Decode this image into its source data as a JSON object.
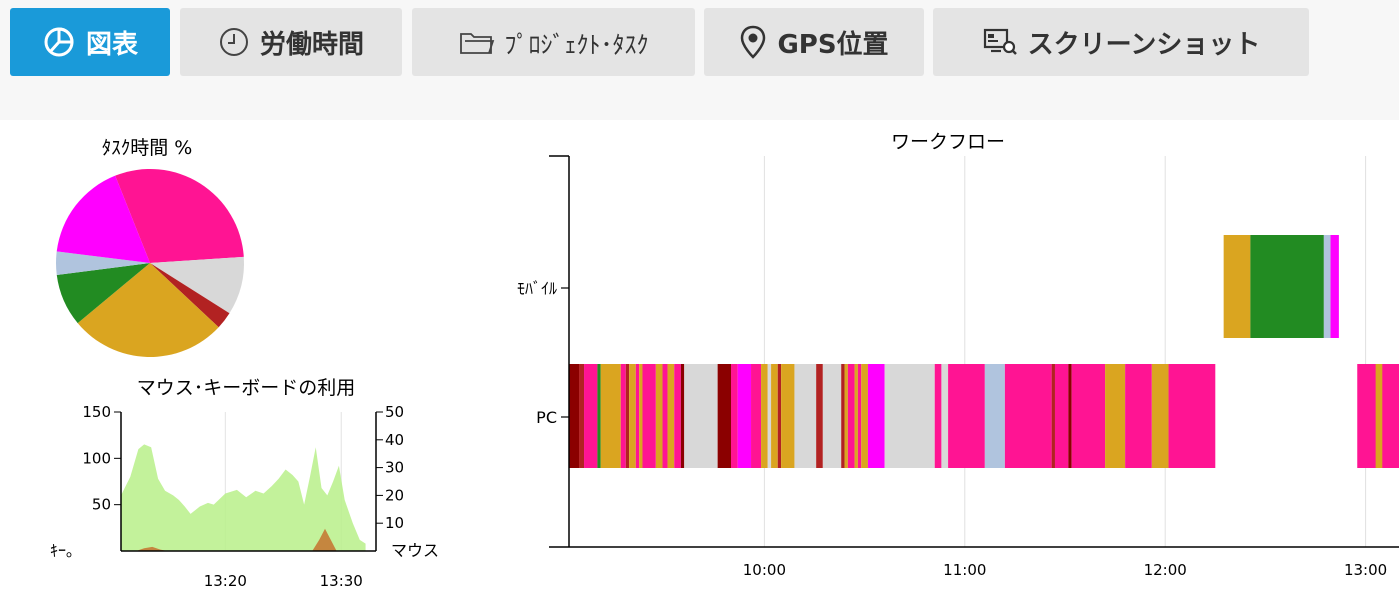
{
  "tabs": [
    {
      "label": "図表",
      "icon": "pie-chart-icon",
      "active": true
    },
    {
      "label": "労働時間",
      "icon": "clock-icon",
      "active": false
    },
    {
      "label": "ﾌﾟﾛｼﾞｪｸﾄ･ﾀｽｸ",
      "icon": "folder-icon",
      "active": false
    },
    {
      "label": "GPS位置",
      "icon": "location-pin-icon",
      "active": false
    },
    {
      "label": "スクリーンショット",
      "icon": "screenshot-icon",
      "active": false
    }
  ],
  "colors": {
    "accent": "#1a9ad9",
    "pink": "#ff1493",
    "magenta": "#ff00ff",
    "lightgray": "#d8d8d8",
    "firebrick": "#b22222",
    "goldenrod": "#daa520",
    "green": "#228b22",
    "lightsteelblue": "#b0c4de",
    "darkred": "#8b0000",
    "lightgreen": "#b9f08a",
    "brown": "#c57a35"
  },
  "chart_data": [
    {
      "type": "pie",
      "title": "ﾀｽｸ時間 %",
      "slices": [
        {
          "color": "pink",
          "value": 30
        },
        {
          "color": "lightgray",
          "value": 10
        },
        {
          "color": "firebrick",
          "value": 3
        },
        {
          "color": "goldenrod",
          "value": 27
        },
        {
          "color": "green",
          "value": 9
        },
        {
          "color": "lightsteelblue",
          "value": 4
        },
        {
          "color": "magenta",
          "value": 17
        }
      ]
    },
    {
      "type": "area",
      "title": "マウス･キーボードの利用",
      "x_ticks": [
        "13:20",
        "13:30"
      ],
      "x_tick_values": [
        20,
        30
      ],
      "xlim": [
        11,
        33
      ],
      "left_axis": {
        "label": "ｷｰ｡",
        "ylim": [
          0,
          150
        ],
        "ticks": [
          50,
          100,
          150
        ]
      },
      "right_axis": {
        "label": "マウス",
        "ylim": [
          0,
          50
        ],
        "ticks": [
          10,
          20,
          30,
          40,
          50
        ]
      },
      "series": [
        {
          "axis": "left",
          "color": "lightgreen",
          "x": [
            11,
            11.8,
            12.5,
            13,
            13.6,
            14.2,
            14.8,
            15.5,
            16,
            16.5,
            17,
            17.8,
            18.5,
            19,
            20,
            21,
            21.8,
            22.6,
            23.3,
            24,
            24.6,
            25.2,
            25.8,
            26.3,
            26.8,
            27.3,
            27.8,
            28.3,
            28.8,
            29.3,
            29.8,
            30.3,
            31,
            31.6,
            32.1
          ],
          "values": [
            60,
            80,
            110,
            115,
            112,
            78,
            65,
            60,
            55,
            48,
            40,
            48,
            52,
            50,
            62,
            66,
            58,
            65,
            62,
            70,
            78,
            88,
            82,
            75,
            50,
            80,
            112,
            68,
            60,
            75,
            92,
            55,
            30,
            12,
            8
          ]
        },
        {
          "axis": "right",
          "color": "brown",
          "x": [
            11,
            12.3,
            13,
            13.7,
            14.4,
            15,
            27.5,
            28.1,
            28.6,
            29.1,
            29.6,
            32
          ],
          "values": [
            0,
            0,
            1,
            1.5,
            0.5,
            0,
            0,
            4,
            8,
            4,
            0,
            0
          ]
        }
      ]
    },
    {
      "type": "timeline",
      "title": "ワークフロー",
      "categories": [
        "ﾓﾊﾞｲﾙ",
        "PC"
      ],
      "x_ticks": [
        "10:00",
        "11:00",
        "12:00",
        "13:00"
      ],
      "x_tick_values": [
        600,
        660,
        720,
        780
      ],
      "xlim": [
        541.5,
        790
      ],
      "rows": {
        "ﾓﾊﾞｲﾙ": [
          [
            "goldenrod",
            737.5,
            745.5
          ],
          [
            "green",
            745.5,
            767.5
          ],
          [
            "lightsteelblue",
            767.5,
            769.5
          ],
          [
            "magenta",
            769.5,
            772
          ]
        ],
        "PC": [
          [
            "darkred",
            541.5,
            544.5
          ],
          [
            "firebrick",
            544.5,
            546
          ],
          [
            "pink",
            546,
            550
          ],
          [
            "green",
            550,
            551
          ],
          [
            "goldenrod",
            551,
            557
          ],
          [
            "pink",
            557,
            558.5
          ],
          [
            "firebrick",
            558.5,
            559.5
          ],
          [
            "goldenrod",
            559.5,
            561.5
          ],
          [
            "pink",
            561.5,
            562.5
          ],
          [
            "goldenrod",
            562.5,
            563.5
          ],
          [
            "pink",
            563.5,
            567.5
          ],
          [
            "goldenrod",
            567.5,
            569.5
          ],
          [
            "pink",
            569.5,
            571
          ],
          [
            "goldenrod",
            571,
            573
          ],
          [
            "pink",
            573,
            575
          ],
          [
            "darkred",
            575,
            576
          ],
          [
            "lightgray",
            576,
            586
          ],
          [
            "darkred",
            586,
            590
          ],
          [
            "pink",
            590,
            592
          ],
          [
            "magenta",
            592,
            596
          ],
          [
            "pink",
            596,
            599
          ],
          [
            "goldenrod",
            599,
            601
          ],
          [
            "lightgray",
            601,
            602
          ],
          [
            "goldenrod",
            602,
            604
          ],
          [
            "firebrick",
            604,
            605
          ],
          [
            "goldenrod",
            605,
            609
          ],
          [
            "lightgray",
            609,
            615.5
          ],
          [
            "firebrick",
            615.5,
            617.5
          ],
          [
            "lightgray",
            617.5,
            623
          ],
          [
            "firebrick",
            623,
            624
          ],
          [
            "goldenrod",
            624,
            625
          ],
          [
            "pink",
            625,
            627
          ],
          [
            "goldenrod",
            627,
            628
          ],
          [
            "pink",
            628,
            629
          ],
          [
            "goldenrod",
            629,
            631
          ],
          [
            "magenta",
            631,
            636
          ],
          [
            "lightgray",
            636,
            651
          ],
          [
            "pink",
            651,
            653
          ],
          [
            "lightgray",
            653,
            655
          ],
          [
            "pink",
            655,
            666
          ],
          [
            "lightsteelblue",
            666,
            672
          ],
          [
            "pink",
            672,
            686
          ],
          [
            "firebrick",
            686,
            687
          ],
          [
            "pink",
            687,
            691
          ],
          [
            "darkred",
            691,
            692
          ],
          [
            "pink",
            692,
            702
          ],
          [
            "goldenrod",
            702,
            708
          ],
          [
            "pink",
            708,
            716
          ],
          [
            "goldenrod",
            716,
            721
          ],
          [
            "pink",
            721,
            735
          ],
          [
            "pink",
            777.5,
            790
          ],
          [
            "goldenrod",
            783,
            785
          ]
        ]
      }
    }
  ]
}
